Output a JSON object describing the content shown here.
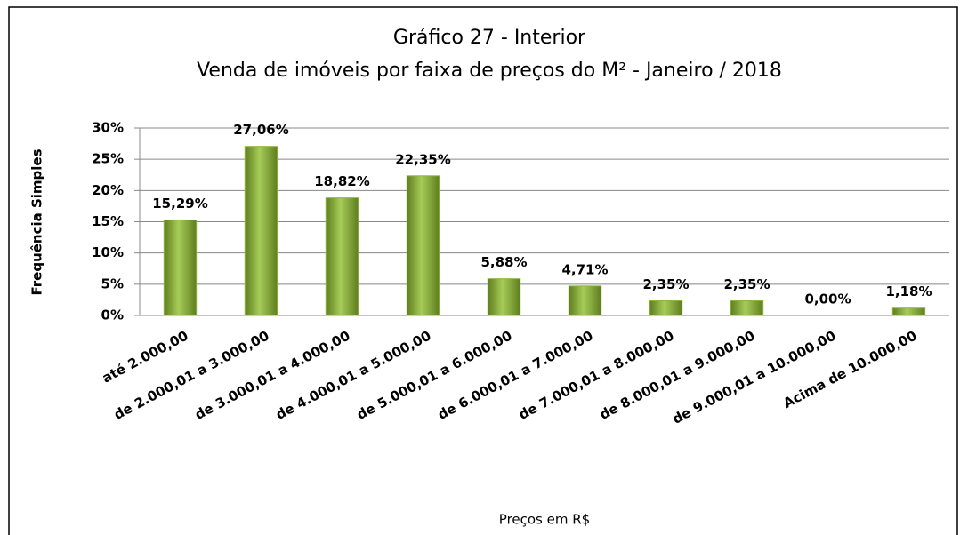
{
  "chart_data": {
    "type": "bar",
    "title": "Gráfico 27 - Interior",
    "subtitle": "Venda de imóveis por faixa de preços do M² - Janeiro / 2018",
    "x_label": "Preços em R$",
    "y_label": "Frequência Simples",
    "categories": [
      "até 2.000,00",
      "de 2.000,01 a 3.000,00",
      "de 3.000,01 a 4.000,00",
      "de 4.000,01 a 5.000,00",
      "de 5.000,01 a 6.000,00",
      "de 6.000,01 a 7.000,00",
      "de 7.000,01 a 8.000,00",
      "de 8.000,01 a 9.000,00",
      "de 9.000,01 a 10.000,00",
      "Acima de 10.000,00"
    ],
    "values": [
      15.29,
      27.06,
      18.82,
      22.35,
      5.88,
      4.71,
      2.35,
      2.35,
      0,
      1.18
    ],
    "value_labels": [
      "15,29%",
      "27,06%",
      "18,82%",
      "22,35%",
      "5,88%",
      "4,71%",
      "2,35%",
      "2,35%",
      "0,00%",
      "1,18%"
    ],
    "color": "#8db63c",
    "ylim": [
      0,
      30
    ],
    "yticks": [
      {
        "value": 0,
        "label": "0%"
      },
      {
        "value": 5,
        "label": "5%"
      },
      {
        "value": 10,
        "label": "10%"
      },
      {
        "value": 15,
        "label": "15%"
      },
      {
        "value": 20,
        "label": "20%"
      },
      {
        "value": 25,
        "label": "25%"
      },
      {
        "value": 30,
        "label": "30%"
      }
    ],
    "grid": true
  }
}
